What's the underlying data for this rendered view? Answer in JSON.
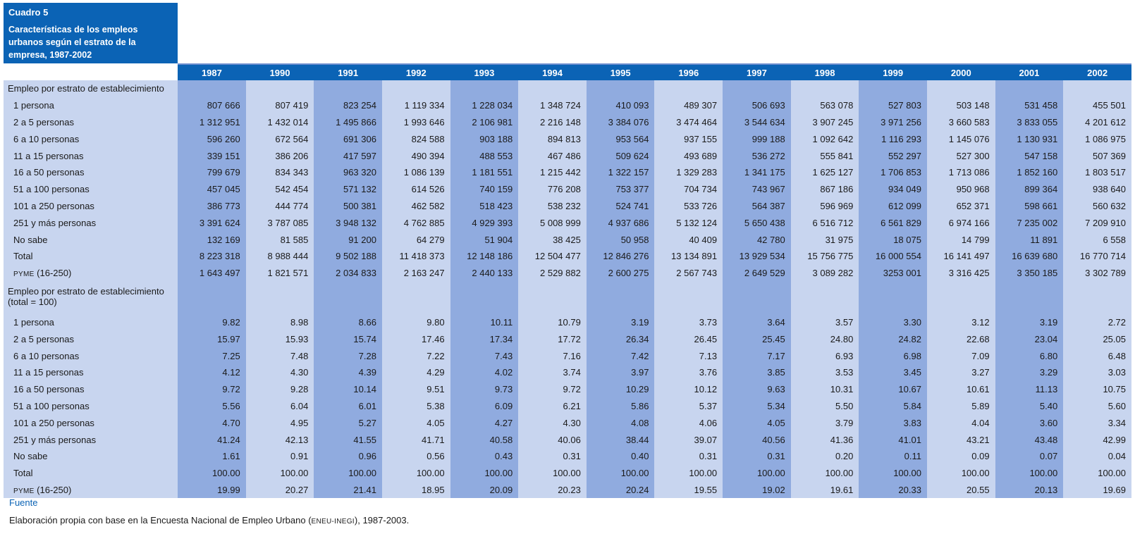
{
  "header": {
    "table_number": "Cuadro 5",
    "title": "Características de los empleos urbanos según el estrato de la empresa, 1987-2002"
  },
  "years": [
    "1987",
    "1990",
    "1991",
    "1992",
    "1993",
    "1994",
    "1995",
    "1996",
    "1997",
    "1998",
    "1999",
    "2000",
    "2001",
    "2002"
  ],
  "section1": {
    "title": "Empleo por estrato de establecimiento",
    "rows": [
      {
        "label": "1 persona",
        "values": [
          "807 666",
          "807 419",
          "823 254",
          "1 119 334",
          "1 228 034",
          "1 348 724",
          "410 093",
          "489 307",
          "506 693",
          "563 078",
          "527 803",
          "503 148",
          "531 458",
          "455 501"
        ]
      },
      {
        "label": "2 a 5 personas",
        "values": [
          "1 312 951",
          "1 432 014",
          "1 495 866",
          "1 993 646",
          "2 106 981",
          "2 216 148",
          "3 384 076",
          "3 474 464",
          "3 544 634",
          "3 907 245",
          "3 971 256",
          "3 660 583",
          "3 833 055",
          "4 201 612"
        ]
      },
      {
        "label": "6 a 10  personas",
        "values": [
          "596 260",
          "672 564",
          "691 306",
          "824 588",
          "903 188",
          "894 813",
          "953 564",
          "937 155",
          "999 188",
          "1 092 642",
          "1 116 293",
          "1 145 076",
          "1 130 931",
          "1 086 975"
        ]
      },
      {
        "label": "11 a 15 personas",
        "values": [
          "339 151",
          "386 206",
          "417 597",
          "490 394",
          "488 553",
          "467 486",
          "509 624",
          "493 689",
          "536 272",
          "555 841",
          "552 297",
          "527 300",
          "547 158",
          "507 369"
        ]
      },
      {
        "label": "16 a 50 personas",
        "values": [
          "799 679",
          "834 343",
          "963 320",
          "1 086 139",
          "1 181 551",
          "1 215 442",
          "1 322 157",
          "1 329 283",
          "1 341 175",
          "1 625 127",
          "1 706 853",
          "1 713 086",
          "1 852 160",
          "1 803 517"
        ]
      },
      {
        "label": "51 a 100 personas",
        "values": [
          "457 045",
          "542 454",
          "571 132",
          "614 526",
          "740 159",
          "776 208",
          "753 377",
          "704 734",
          "743 967",
          "867 186",
          "934 049",
          "950 968",
          "899 364",
          "938 640"
        ]
      },
      {
        "label": "101 a 250 personas",
        "values": [
          "386 773",
          "444 774",
          "500 381",
          "462 582",
          "518 423",
          "538 232",
          "524 741",
          "533 726",
          "564 387",
          "596 969",
          "612 099",
          "652 371",
          "598 661",
          "560 632"
        ]
      },
      {
        "label": "251 y más personas",
        "values": [
          "3 391 624",
          "3 787 085",
          "3 948 132",
          "4 762 885",
          "4 929 393",
          "5 008 999",
          "4 937 686",
          "5 132 124",
          "5 650 438",
          "6 516 712",
          "6 561 829",
          "6 974 166",
          "7 235 002",
          "7 209 910"
        ]
      },
      {
        "label": "No sabe",
        "values": [
          "132 169",
          "81 585",
          "91 200",
          "64 279",
          "51 904",
          "38 425",
          "50 958",
          "40 409",
          "42 780",
          "31 975",
          "18 075",
          "14 799",
          "11 891",
          "6 558"
        ]
      },
      {
        "label": "Total",
        "values": [
          "8 223 318",
          "8 988 444",
          "9 502 188",
          "11 418 373",
          "12 148 186",
          "12 504 477",
          "12 846 276",
          "13 134 891",
          "13 929 534",
          "15 756 775",
          "16 000 554",
          "16 141 497",
          "16 639 680",
          "16 770 714"
        ]
      },
      {
        "label_sc": "PYME",
        "label_rest": " (16-250)",
        "values": [
          "1 643 497",
          "1 821 571",
          "2 034 833",
          "2 163 247",
          "2 440 133",
          "2 529 882",
          "2 600 275",
          "2 567 743",
          "2 649 529",
          "3 089 282",
          "3253 001",
          "3 316 425",
          "3 350 185",
          "3 302 789"
        ]
      }
    ]
  },
  "section2": {
    "title_line1": "Empleo por estrato de establecimiento",
    "title_line2": "(total = 100)",
    "rows": [
      {
        "label": "1 persona",
        "values": [
          "9.82",
          "8.98",
          "8.66",
          "9.80",
          "10.11",
          "10.79",
          "3.19",
          "3.73",
          "3.64",
          "3.57",
          "3.30",
          "3.12",
          "3.19",
          "2.72"
        ]
      },
      {
        "label": "2 a 5 personas",
        "values": [
          "15.97",
          "15.93",
          "15.74",
          "17.46",
          "17.34",
          "17.72",
          "26.34",
          "26.45",
          "25.45",
          "24.80",
          "24.82",
          "22.68",
          "23.04",
          "25.05"
        ]
      },
      {
        "label": "6 a 10  personas",
        "values": [
          "7.25",
          "7.48",
          "7.28",
          "7.22",
          "7.43",
          "7.16",
          "7.42",
          "7.13",
          "7.17",
          "6.93",
          "6.98",
          "7.09",
          "6.80",
          "6.48"
        ]
      },
      {
        "label": "11 a 15 personas",
        "values": [
          "4.12",
          "4.30",
          "4.39",
          "4.29",
          "4.02",
          "3.74",
          "3.97",
          "3.76",
          "3.85",
          "3.53",
          "3.45",
          "3.27",
          "3.29",
          "3.03"
        ]
      },
      {
        "label": "16 a 50 personas",
        "values": [
          "9.72",
          "9.28",
          "10.14",
          "9.51",
          "9.73",
          "9.72",
          "10.29",
          "10.12",
          "9.63",
          "10.31",
          "10.67",
          "10.61",
          "11.13",
          "10.75"
        ]
      },
      {
        "label": "51 a 100 personas",
        "values": [
          "5.56",
          "6.04",
          "6.01",
          "5.38",
          "6.09",
          "6.21",
          "5.86",
          "5.37",
          "5.34",
          "5.50",
          "5.84",
          "5.89",
          "5.40",
          "5.60"
        ]
      },
      {
        "label": "101 a 250 personas",
        "values": [
          "4.70",
          "4.95",
          "5.27",
          "4.05",
          "4.27",
          "4.30",
          "4.08",
          "4.06",
          "4.05",
          "3.79",
          "3.83",
          "4.04",
          "3.60",
          "3.34"
        ]
      },
      {
        "label": "251 y más personas",
        "values": [
          "41.24",
          "42.13",
          "41.55",
          "41.71",
          "40.58",
          "40.06",
          "38.44",
          "39.07",
          "40.56",
          "41.36",
          "41.01",
          "43.21",
          "43.48",
          "42.99"
        ]
      },
      {
        "label": "No sabe",
        "values": [
          "1.61",
          "0.91",
          "0.96",
          "0.56",
          "0.43",
          "0.31",
          "0.40",
          "0.31",
          "0.31",
          "0.20",
          "0.11",
          "0.09",
          "0.07",
          "0.04"
        ]
      },
      {
        "label": "Total",
        "values": [
          "100.00",
          "100.00",
          "100.00",
          "100.00",
          "100.00",
          "100.00",
          "100.00",
          "100.00",
          "100.00",
          "100.00",
          "100.00",
          "100.00",
          "100.00",
          "100.00"
        ]
      },
      {
        "label_sc": "PYME",
        "label_rest": " (16-250)",
        "values": [
          "19.99",
          "20.27",
          "21.41",
          "18.95",
          "20.09",
          "20.23",
          "20.24",
          "19.55",
          "19.02",
          "19.61",
          "20.33",
          "20.55",
          "20.13",
          "19.69"
        ]
      }
    ]
  },
  "footer": {
    "source_label": "Fuente",
    "note_before": "Elaboración propia con base en la Encuesta Nacional de Empleo Urbano (",
    "note_sc": "ENEU-INEGI",
    "note_after": "), 1987-2003."
  }
}
